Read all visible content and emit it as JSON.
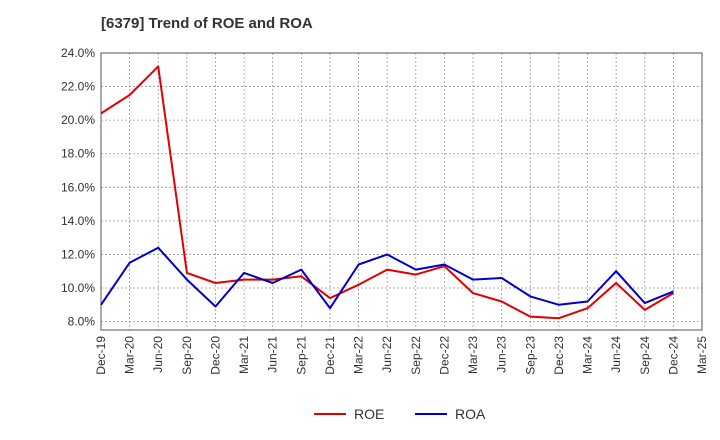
{
  "chart_data": {
    "type": "line",
    "title": "[6379]  Trend of ROE and ROA",
    "xlabel": "",
    "ylabel": "",
    "categories": [
      "Dec-19",
      "Mar-20",
      "Jun-20",
      "Sep-20",
      "Dec-20",
      "Mar-21",
      "Jun-21",
      "Sep-21",
      "Dec-21",
      "Mar-22",
      "Jun-22",
      "Sep-22",
      "Dec-22",
      "Mar-23",
      "Jun-23",
      "Sep-23",
      "Dec-23",
      "Mar-24",
      "Jun-24",
      "Sep-24",
      "Dec-24",
      "Mar-25"
    ],
    "y_ticks": [
      "8.0%",
      "10.0%",
      "12.0%",
      "14.0%",
      "16.0%",
      "18.0%",
      "20.0%",
      "22.0%",
      "24.0%"
    ],
    "ylim": [
      7.5,
      24.0
    ],
    "grid": true,
    "legend_position": "bottom-center",
    "series": [
      {
        "name": "ROE",
        "color": "#e00000",
        "values": [
          20.4,
          21.5,
          23.2,
          10.9,
          10.3,
          10.5,
          10.5,
          10.7,
          9.4,
          10.2,
          11.1,
          10.8,
          11.3,
          9.7,
          9.2,
          8.3,
          8.2,
          8.8,
          10.3,
          8.7,
          9.7,
          null
        ]
      },
      {
        "name": "ROA",
        "color": "#0000cc",
        "values": [
          9.0,
          11.5,
          12.4,
          10.5,
          8.9,
          10.9,
          10.3,
          11.1,
          8.8,
          11.4,
          12.0,
          11.1,
          11.4,
          10.5,
          10.6,
          9.5,
          9.0,
          9.2,
          11.0,
          9.1,
          9.8,
          null
        ]
      }
    ]
  }
}
